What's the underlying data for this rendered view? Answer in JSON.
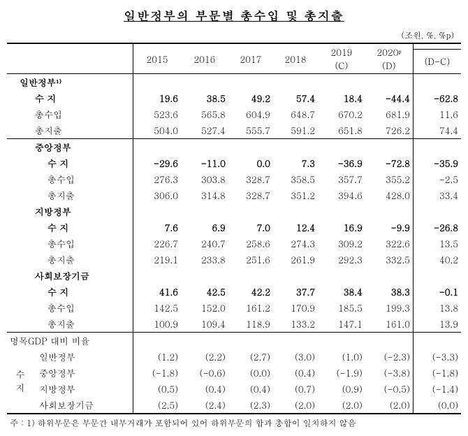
{
  "title": "일반정부의 부문별 총수입 및 총지출",
  "unit": "(조원, %, %p)",
  "headers": {
    "y2015": "2015",
    "y2016": "2016",
    "y2017": "2017",
    "y2018": "2018",
    "y2019": "2019\n(C)",
    "y2020": "2020ᵖ\n(D)",
    "diff": "(D-C)"
  },
  "sections": {
    "general": {
      "title": "일반정부¹⁾",
      "balance": {
        "label": "수  지",
        "v": [
          "19.6",
          "38.5",
          "49.2",
          "57.4",
          "18.4",
          "-44.4",
          "-62.8"
        ]
      },
      "revenue": {
        "label": "총수입",
        "v": [
          "523.6",
          "565.8",
          "604.9",
          "648.7",
          "670.2",
          "681.9",
          "11.6"
        ]
      },
      "expense": {
        "label": "총지출",
        "v": [
          "504.0",
          "527.4",
          "555.7",
          "591.2",
          "651.8",
          "726.2",
          "74.4"
        ]
      }
    },
    "central": {
      "title": "중앙정부",
      "balance": {
        "label": "수  지",
        "v": [
          "-29.6",
          "-11.0",
          "0.0",
          "7.3",
          "-36.9",
          "-72.8",
          "-35.9"
        ]
      },
      "revenue": {
        "label": "총수입",
        "v": [
          "276.3",
          "303.8",
          "328.7",
          "358.5",
          "357.7",
          "355.2",
          "-2.5"
        ]
      },
      "expense": {
        "label": "총지출",
        "v": [
          "306.0",
          "314.8",
          "328.7",
          "351.2",
          "394.6",
          "428.0",
          "33.4"
        ]
      }
    },
    "local": {
      "title": "지방정부",
      "balance": {
        "label": "수  지",
        "v": [
          "7.6",
          "6.9",
          "7.0",
          "12.4",
          "16.9",
          "-9.9",
          "-26.8"
        ]
      },
      "revenue": {
        "label": "총수입",
        "v": [
          "226.7",
          "240.7",
          "258.6",
          "274.3",
          "309.2",
          "322.6",
          "13.5"
        ]
      },
      "expense": {
        "label": "총지출",
        "v": [
          "219.1",
          "233.8",
          "251.6",
          "261.9",
          "292.3",
          "332.5",
          "40.2"
        ]
      }
    },
    "social": {
      "title": "사회보장기금",
      "balance": {
        "label": "수  지",
        "v": [
          "41.6",
          "42.5",
          "42.2",
          "37.7",
          "38.4",
          "38.3",
          "-0.1"
        ]
      },
      "revenue": {
        "label": "총수입",
        "v": [
          "142.5",
          "152.0",
          "161.2",
          "170.9",
          "185.5",
          "199.3",
          "13.8"
        ]
      },
      "expense": {
        "label": "총지출",
        "v": [
          "100.9",
          "109.4",
          "118.9",
          "133.2",
          "147.1",
          "161.0",
          "13.9"
        ]
      }
    }
  },
  "gdp": {
    "title": "명목GDP 대비 비율",
    "suji": "수\n지",
    "rows": [
      {
        "label": "일반정부",
        "v": [
          "(1.2)",
          "(2.2)",
          "(2.7)",
          "(3.0)",
          "(1.0)",
          "(-2.3)",
          "(-3.3)"
        ]
      },
      {
        "label": "중앙정부",
        "v": [
          "(-1.8)",
          "(-0.6)",
          "(0.0)",
          "(0.4)",
          "(-1.9)",
          "(-3.8)",
          "(-1.8)"
        ]
      },
      {
        "label": "지방정부",
        "v": [
          "(0.5)",
          "(0.4)",
          "(0.4)",
          "(0.7)",
          "(0.9)",
          "(-0.5)",
          "(-1.4)"
        ]
      },
      {
        "label": "사회보장기금",
        "v": [
          "(2.5)",
          "(2.4)",
          "(2.3)",
          "(2.0)",
          "(2.0)",
          "(2.0)",
          "(0.0)"
        ]
      }
    ]
  },
  "footnote": "주 : 1) 하위부문은 부문간 내부거래가 포함되어 있어 하위부문의 합과 총합이 일치하지 않음"
}
